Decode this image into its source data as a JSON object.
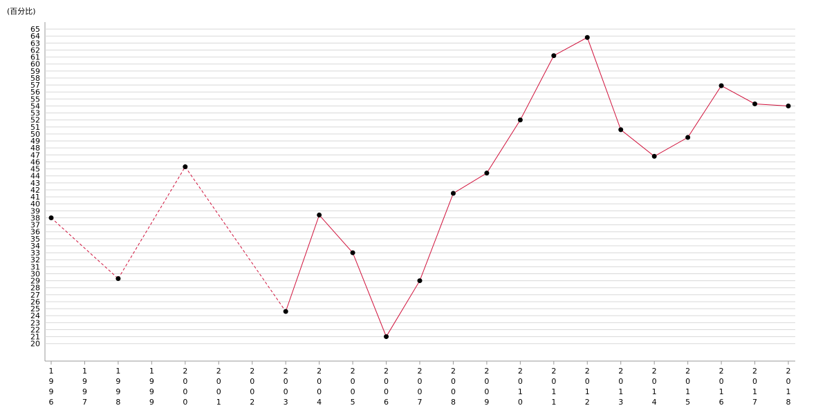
{
  "chart_data": {
    "type": "line",
    "y_label": "(百分比)",
    "categories": [
      "1996",
      "1997",
      "1998",
      "1999",
      "2000",
      "2001",
      "2002",
      "2003",
      "2004",
      "2005",
      "2006",
      "2007",
      "2008",
      "2009",
      "2010",
      "2011",
      "2012",
      "2013",
      "2014",
      "2015",
      "2016",
      "2017",
      "2018"
    ],
    "series": [
      {
        "color": "#d0103a",
        "marker_color": "#000000",
        "values": [
          38.0,
          null,
          29.3,
          null,
          45.3,
          null,
          null,
          24.6,
          38.4,
          33.0,
          21.0,
          29.0,
          41.5,
          44.4,
          52.0,
          61.2,
          63.8,
          50.6,
          46.8,
          49.5,
          56.9,
          54.3,
          54.0
        ]
      }
    ],
    "gap_style": "dashed",
    "ylim": [
      17.5,
      66
    ],
    "yticks": [
      20,
      21,
      22,
      23,
      24,
      25,
      26,
      27,
      28,
      29,
      30,
      31,
      32,
      33,
      34,
      35,
      36,
      37,
      38,
      39,
      40,
      41,
      42,
      43,
      44,
      45,
      46,
      47,
      48,
      49,
      50,
      51,
      52,
      53,
      54,
      55,
      56,
      57,
      58,
      59,
      60,
      61,
      62,
      63,
      64,
      65
    ],
    "grid": true
  }
}
